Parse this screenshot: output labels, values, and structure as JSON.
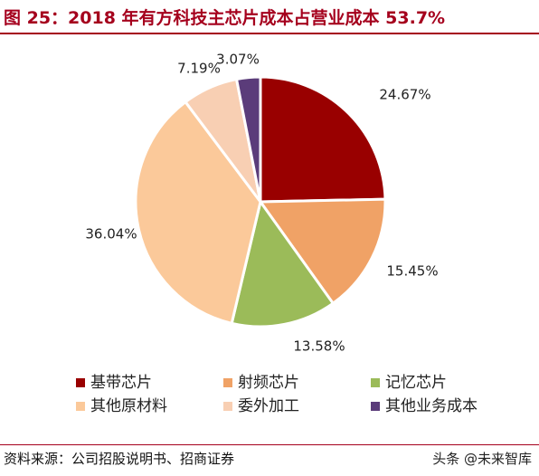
{
  "title": "图 25：2018 年有方科技主芯片成本占营业成本 53.7%",
  "source": "资料来源：公司招股说明书、招商证券",
  "watermark": "头条 @未来智库",
  "chart_data": {
    "type": "pie",
    "title": "图 25：2018 年有方科技主芯片成本占营业成本 53.7%",
    "start_angle_deg": 0,
    "direction": "clockwise",
    "legend_position": "bottom",
    "slices": [
      {
        "name": "基带芯片",
        "value": 24.67,
        "label": "24.67%",
        "color": "#990000"
      },
      {
        "name": "射频芯片",
        "value": 15.45,
        "label": "15.45%",
        "color": "#f0a266"
      },
      {
        "name": "记忆芯片",
        "value": 13.58,
        "label": "13.58%",
        "color": "#9bbb59"
      },
      {
        "name": "其他原材料",
        "value": 36.04,
        "label": "36.04%",
        "color": "#fbc99a"
      },
      {
        "name": "委外加工",
        "value": 7.19,
        "label": "7.19%",
        "color": "#f8cfb3"
      },
      {
        "name": "其他业务成本",
        "value": 3.07,
        "label": "3.07%",
        "color": "#5b3c7a"
      }
    ]
  }
}
